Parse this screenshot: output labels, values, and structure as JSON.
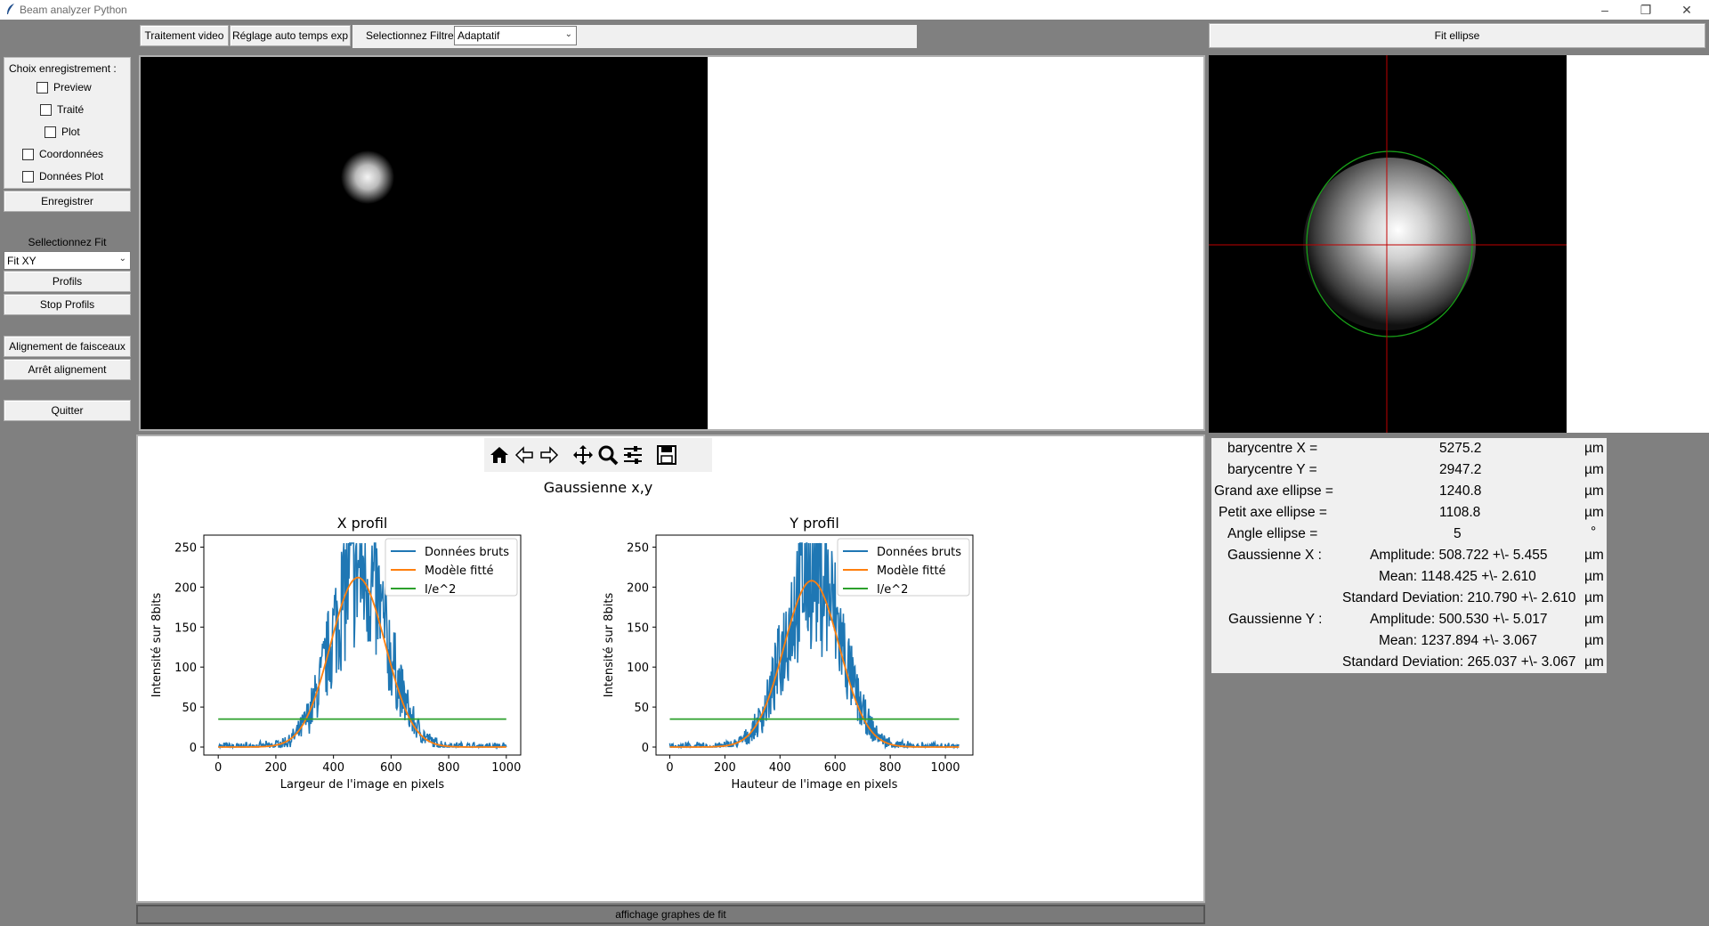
{
  "window": {
    "title": "Beam analyzer Python"
  },
  "toolbar": {
    "btn_video": "Traitement video",
    "btn_auto_exp": "Réglage auto temps exp",
    "filter_label": "Selectionnez Filtre",
    "filter_value": "Adaptatif"
  },
  "fit_ellipse_label": "Fit ellipse",
  "left": {
    "record_title": "Choix enregistrement :",
    "checkboxes": [
      "Preview",
      "Traité",
      "Plot",
      "Coordonnées",
      "Données Plot"
    ],
    "save_btn": "Enregistrer",
    "fit_label": "Sellectionnez Fit",
    "fit_value": "Fit XY",
    "profils_btn": "Profils",
    "stop_profils_btn": "Stop Profils",
    "align_btn": "Alignement de faisceaux",
    "stop_align_btn": "Arrêt alignement",
    "quit_btn": "Quitter"
  },
  "results": {
    "rows": [
      {
        "label": "barycentre X =",
        "value": "5275.2",
        "unit": "µm"
      },
      {
        "label": "barycentre Y =",
        "value": "2947.2",
        "unit": "µm"
      },
      {
        "label": "Grand axe ellipse =",
        "value": "1240.8",
        "unit": "µm"
      },
      {
        "label": "Petit axe ellipse =",
        "value": "1108.8",
        "unit": "µm"
      },
      {
        "label": "Angle ellipse =",
        "value": "5",
        "unit": "°"
      }
    ],
    "gx_label": "Gaussienne X :",
    "gx": [
      {
        "text": "Amplitude: 508.722 +\\- 5.455",
        "unit": "µm"
      },
      {
        "text": "Mean: 1148.425 +\\- 2.610",
        "unit": "µm"
      },
      {
        "text": "Standard Deviation: 210.790 +\\- 2.610",
        "unit": "µm"
      }
    ],
    "gy_label": "Gaussienne Y :",
    "gy": [
      {
        "text": "Amplitude: 500.530 +\\- 5.017",
        "unit": "µm"
      },
      {
        "text": "Mean: 1237.894 +\\- 3.067",
        "unit": "µm"
      },
      {
        "text": "Standard Deviation: 265.037 +\\- 3.067",
        "unit": "µm"
      }
    ]
  },
  "status_bar": "affichage graphes de fit",
  "icons": [
    "home-icon",
    "back-arrow-icon",
    "forward-arrow-icon",
    "pan-icon",
    "zoom-icon",
    "configure-icon",
    "save-icon"
  ],
  "colors": {
    "series_raw": "#1f77b4",
    "series_fit": "#ff7f0e",
    "series_threshold": "#2ca02c"
  },
  "chart_data": {
    "suptitle": "Gaussienne x,y",
    "charts": [
      {
        "type": "line",
        "title": "X profil",
        "xlabel": "Largeur de l'image en pixels",
        "ylabel": "Intensité sur 8bits",
        "xlim": [
          -50,
          1050
        ],
        "ylim": [
          -10,
          265
        ],
        "xticks": [
          0,
          200,
          400,
          600,
          800,
          1000
        ],
        "yticks": [
          0,
          50,
          100,
          150,
          200,
          250
        ],
        "legend": "top-right",
        "x_range": [
          0,
          1000
        ],
        "series": [
          {
            "name": "Données bruts",
            "kind": "noisy_gaussian",
            "center": 490,
            "sigma": 95,
            "amplitude": 225,
            "max": 255
          },
          {
            "name": "Modèle fitté",
            "kind": "gaussian",
            "center": 485,
            "sigma": 95,
            "amplitude": 212
          },
          {
            "name": "I/e^2",
            "kind": "constant",
            "value": 35
          }
        ]
      },
      {
        "type": "line",
        "title": "Y profil",
        "xlabel": "Hauteur de l'image en pixels",
        "ylabel": "Intensité sur 8bits",
        "xlim": [
          -50,
          1100
        ],
        "ylim": [
          -10,
          265
        ],
        "xticks": [
          0,
          200,
          400,
          600,
          800,
          1000
        ],
        "yticks": [
          0,
          50,
          100,
          150,
          200,
          250
        ],
        "legend": "top-right",
        "x_range": [
          0,
          1050
        ],
        "series": [
          {
            "name": "Données bruts",
            "kind": "noisy_gaussian",
            "center": 520,
            "sigma": 100,
            "amplitude": 225,
            "max": 255
          },
          {
            "name": "Modèle fitté",
            "kind": "gaussian",
            "center": 515,
            "sigma": 100,
            "amplitude": 208
          },
          {
            "name": "I/e^2",
            "kind": "constant",
            "value": 35
          }
        ]
      }
    ]
  }
}
